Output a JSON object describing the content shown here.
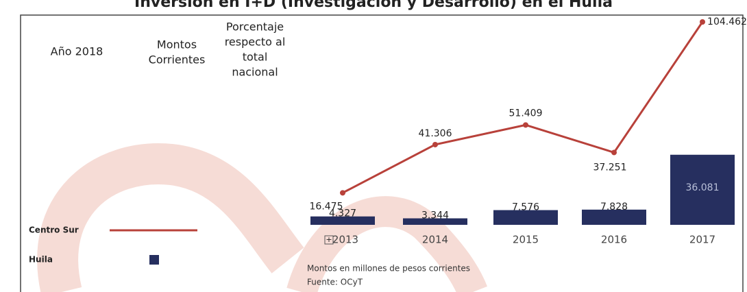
{
  "chart_data": {
    "type": "bar_line",
    "title": "Inversión en I+D (Investigación y Desarrollo) en el Huila",
    "header_columns": [
      [
        "Año 2018"
      ],
      [
        "Montos",
        "Corrientes"
      ],
      [
        "Porcentaje",
        "respecto al",
        "total",
        "nacional"
      ]
    ],
    "categories": [
      "2013",
      "2014",
      "2015",
      "2016",
      "2017"
    ],
    "series": [
      {
        "name": "Centro Sur",
        "type": "line",
        "color": "#b8413a",
        "values": [
          16475,
          41306,
          51409,
          37251,
          104462
        ],
        "value_labels": [
          "16.475",
          "41.306",
          "51.409",
          "37.251",
          "104.462"
        ]
      },
      {
        "name": "Huila",
        "type": "bar",
        "color": "#262f5f",
        "values": [
          4327,
          3344,
          7576,
          7828,
          36081
        ],
        "value_labels": [
          "4.327",
          "3.344",
          "7.576",
          "7.828",
          "36.081"
        ]
      }
    ],
    "notes": [
      "Montos en millones de pesos corrientes",
      "Fuente: OCyT"
    ]
  }
}
